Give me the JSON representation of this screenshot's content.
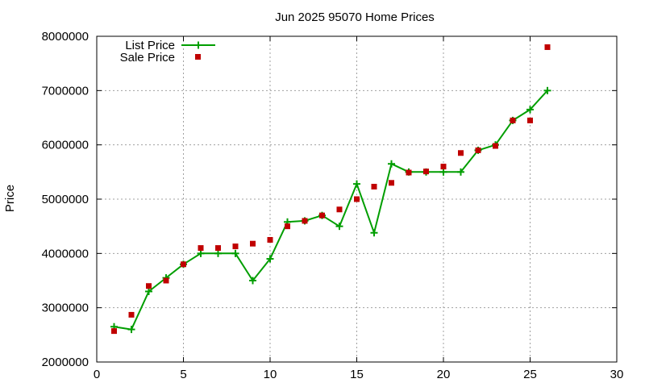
{
  "chart_data": {
    "type": "line",
    "title": "Jun 2025 95070 Home Prices",
    "xlabel": "",
    "ylabel": "Price",
    "xlim": [
      0,
      30
    ],
    "ylim": [
      2000000,
      8000000
    ],
    "x_ticks": [
      0,
      5,
      10,
      15,
      20,
      25,
      30
    ],
    "y_ticks": [
      2000000,
      3000000,
      4000000,
      5000000,
      6000000,
      7000000,
      8000000
    ],
    "x_tick_labels": [
      "0",
      "5",
      "10",
      "15",
      "20",
      "25",
      "30"
    ],
    "y_tick_labels": [
      "2000000",
      "3000000",
      "4000000",
      "5000000",
      "6000000",
      "7000000",
      "8000000"
    ],
    "grid": true,
    "legend_position": "top-left",
    "series": [
      {
        "name": "List Price",
        "style": "line-with-plus-markers",
        "color": "#009e00",
        "x": [
          1,
          2,
          3,
          4,
          5,
          6,
          7,
          8,
          9,
          10,
          11,
          12,
          13,
          14,
          15,
          16,
          17,
          18,
          19,
          20,
          21,
          22,
          23,
          24,
          25,
          26
        ],
        "values": [
          2650000,
          2600000,
          3300000,
          3550000,
          3800000,
          4000000,
          4000000,
          4000000,
          3500000,
          3900000,
          4580000,
          4600000,
          4700000,
          4500000,
          5280000,
          4380000,
          5650000,
          5500000,
          5500000,
          5500000,
          5500000,
          5900000,
          6000000,
          6450000,
          6650000,
          7000000
        ]
      },
      {
        "name": "Sale Price",
        "style": "square-markers",
        "color": "#c00000",
        "x": [
          1,
          2,
          3,
          4,
          5,
          6,
          7,
          8,
          9,
          10,
          11,
          12,
          13,
          14,
          15,
          16,
          17,
          18,
          19,
          20,
          21,
          22,
          23,
          24,
          25,
          26
        ],
        "values": [
          2570000,
          2870000,
          3400000,
          3500000,
          3800000,
          4100000,
          4100000,
          4130000,
          4180000,
          4250000,
          4500000,
          4600000,
          4700000,
          4810000,
          5000000,
          5230000,
          5300000,
          5490000,
          5510000,
          5600000,
          5850000,
          5900000,
          5980000,
          6450000,
          6450000,
          7800000
        ]
      }
    ]
  }
}
